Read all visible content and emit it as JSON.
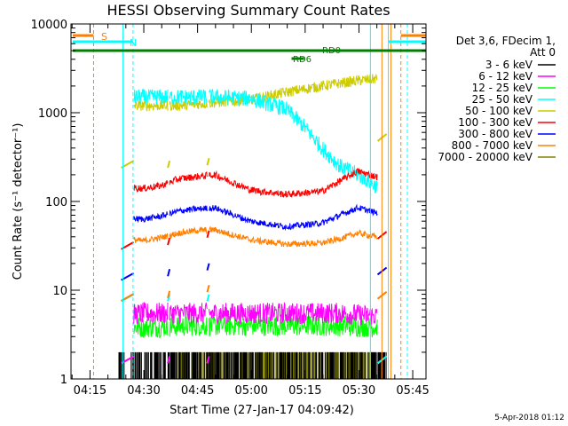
{
  "chart_data": {
    "type": "line",
    "title": "HESSI Observing Summary Count Rates",
    "xlabel": "Start Time (27-Jan-17 04:09:42)",
    "ylabel": "Count Rate (s⁻¹ detector⁻¹)",
    "ylog": true,
    "ylim": [
      1,
      10000
    ],
    "xlim_minutes": [
      0,
      99
    ],
    "x_tick_labels": [
      "04:15",
      "04:30",
      "04:45",
      "05:00",
      "05:15",
      "05:30",
      "05:45"
    ],
    "x_tick_minutes": [
      5.3,
      20.3,
      35.3,
      50.3,
      65.3,
      80.3,
      95.3
    ],
    "y_tick_labels": [
      "1",
      "10",
      "100",
      "1000",
      "10000"
    ],
    "y_tick_values": [
      1,
      10,
      100,
      1000,
      10000
    ],
    "legend": {
      "header_line1": "Det 3,6, FDecim 1,",
      "header_line2": "Att 0",
      "placement": "right"
    },
    "series": [
      {
        "name": "3 - 6 keV",
        "color": "#000000",
        "x": [
          12,
          20,
          35,
          55,
          75,
          88
        ],
        "values": [
          1.6,
          1.6,
          1.5,
          1.5,
          1.6,
          1.6
        ]
      },
      {
        "name": "6 - 12 keV",
        "color": "#ff00ff",
        "x": [
          12,
          20,
          35,
          55,
          75,
          88
        ],
        "values": [
          5,
          5.5,
          5.5,
          5.5,
          5.5,
          5
        ]
      },
      {
        "name": "12 - 25 keV",
        "color": "#00ff00",
        "x": [
          12,
          20,
          35,
          55,
          75,
          88
        ],
        "values": [
          4,
          3.8,
          4,
          4,
          4,
          3.8
        ]
      },
      {
        "name": "25 - 50 keV",
        "color": "#00ffff",
        "x": [
          15,
          20,
          30,
          40,
          50,
          60,
          65,
          70,
          75,
          80,
          85
        ],
        "values": [
          1500,
          1500,
          1500,
          1500,
          1450,
          1100,
          700,
          400,
          250,
          200,
          150
        ]
      },
      {
        "name": "50 - 100 keV",
        "color": "#cccc00",
        "x": [
          15,
          20,
          30,
          40,
          50,
          60,
          70,
          80,
          85
        ],
        "values": [
          1200,
          1200,
          1200,
          1300,
          1400,
          1700,
          2000,
          2300,
          2400
        ]
      },
      {
        "name": "100 - 300 keV",
        "color": "#ff0000",
        "x": [
          15,
          20,
          25,
          30,
          35,
          40,
          50,
          60,
          70,
          75,
          80,
          85
        ],
        "values": [
          145,
          140,
          150,
          180,
          190,
          200,
          135,
          120,
          130,
          170,
          220,
          190
        ]
      },
      {
        "name": "300 - 800 keV",
        "color": "#0000ff",
        "x": [
          15,
          20,
          25,
          30,
          35,
          40,
          50,
          60,
          70,
          75,
          80,
          85
        ],
        "values": [
          65,
          63,
          68,
          78,
          82,
          85,
          60,
          52,
          57,
          70,
          85,
          75
        ]
      },
      {
        "name": "800 - 7000 keV",
        "color": "#ff8000",
        "x": [
          15,
          20,
          25,
          30,
          35,
          40,
          50,
          60,
          70,
          75,
          80,
          85
        ],
        "values": [
          38,
          36,
          39,
          44,
          47,
          48,
          37,
          33,
          34,
          38,
          44,
          40
        ]
      },
      {
        "name": "7000 - 20000 keV",
        "color": "#808000",
        "x": [
          30,
          40,
          50,
          60,
          70,
          80,
          85
        ],
        "values": [
          1.5,
          1.5,
          1.5,
          1.5,
          1.5,
          1.5,
          1.5
        ]
      }
    ],
    "annotations": {
      "saa_label": "S",
      "night_label": "N",
      "rd0_label": "RD0",
      "rd6_label": "RD6"
    },
    "footer_date": "5-Apr-2018 01:12"
  }
}
